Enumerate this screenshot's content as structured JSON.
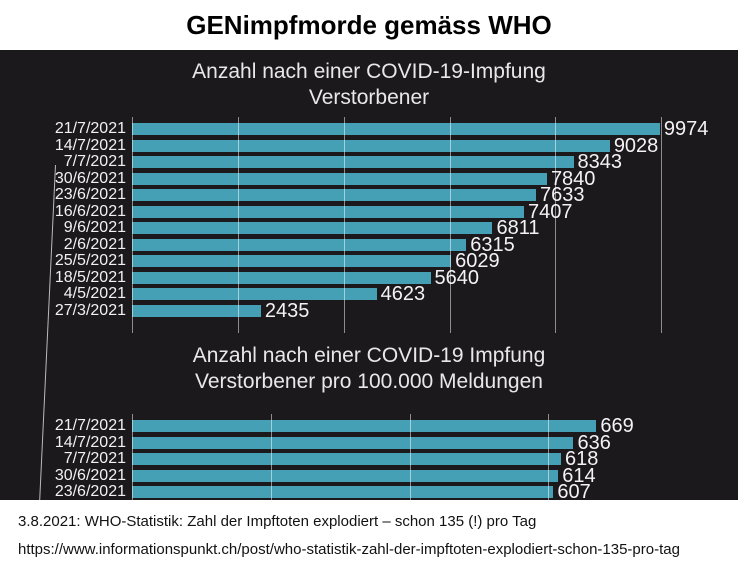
{
  "page": {
    "title": "GENimpfmorde gemäss WHO",
    "footer": {
      "caption": "3.8.2021: WHO-Statistik: Zahl der Impftoten explodiert – schon 135 (!) pro Tag",
      "url": "https://www.informationspunkt.ch/post/who-statistik-zahl-der-impftoten-explodiert-schon-135-pro-tag"
    }
  },
  "colors": {
    "bar": "#46a0b5",
    "panel_bg": "#1c191c",
    "panel_text": "#eae8ea",
    "gridline": "rgba(255,255,255,0.5)"
  },
  "chart_data": [
    {
      "type": "bar",
      "orientation": "horizontal",
      "title_lines": [
        "Anzahl nach einer COVID-19-Impfung",
        "Verstorbener"
      ],
      "categories": [
        "21/7/2021",
        "14/7/2021",
        "7/7/2021",
        "30/6/2021",
        "23/6/2021",
        "16/6/2021",
        "9/6/2021",
        "2/6/2021",
        "25/5/2021",
        "18/5/2021",
        "4/5/2021",
        "27/3/2021"
      ],
      "values": [
        9974,
        9028,
        8343,
        7840,
        7633,
        7407,
        6811,
        6315,
        6029,
        5640,
        4623,
        2435
      ],
      "value_labels_shown": true,
      "xlim": [
        0,
        11450
      ],
      "grid_values": [
        0,
        2000,
        4000,
        6000,
        8000,
        10000
      ],
      "grid_on": true,
      "legend": "none"
    },
    {
      "type": "bar",
      "orientation": "horizontal",
      "title_lines": [
        "Anzahl nach einer COVID-19 Impfung",
        "Verstorbener pro 100.000 Meldungen"
      ],
      "categories": [
        "21/7/2021",
        "14/7/2021",
        "7/7/2021",
        "30/6/2021"
      ],
      "values": [
        669,
        636,
        618,
        614
      ],
      "cutoff_row": {
        "category": "23/6/2021",
        "value_estimate": 607,
        "clipped_by_panel_bottom": true
      },
      "value_labels_shown": true,
      "xlim": [
        0,
        873
      ],
      "grid_values": [
        0,
        200,
        400,
        600
      ],
      "grid_on": true,
      "legend": "none"
    }
  ]
}
